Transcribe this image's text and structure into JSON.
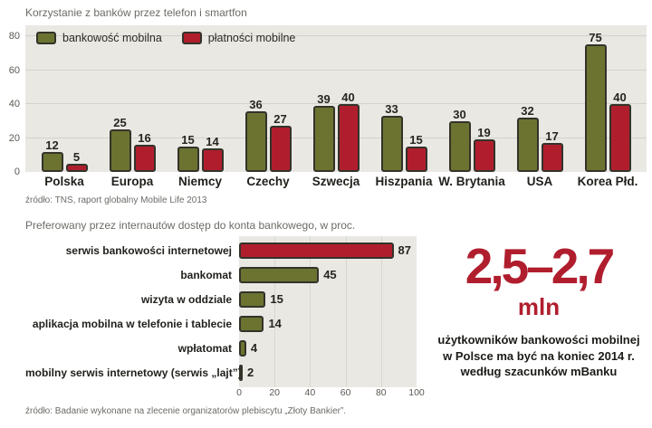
{
  "colors": {
    "olive": "#6c7331",
    "red": "#b01e2e",
    "plot_background": "#e9e8e3",
    "bar_outline": "#33332a",
    "dark_text": "#21211c",
    "muted_text": "#6b6b66"
  },
  "chart_data": [
    {
      "type": "bar",
      "orientation": "vertical",
      "title": "Korzystanie z banków przez telefon i smartfon",
      "categories": [
        "Polska",
        "Europa",
        "Niemcy",
        "Czechy",
        "Szwecja",
        "Hiszpania",
        "W. Brytania",
        "USA",
        "Korea Płd."
      ],
      "series": [
        {
          "name": "bankowość mobilna",
          "color": "#6c7331",
          "values": [
            12,
            25,
            15,
            36,
            39,
            33,
            30,
            32,
            75
          ]
        },
        {
          "name": "płatności mobilne",
          "color": "#b01e2e",
          "values": [
            5,
            16,
            14,
            27,
            40,
            15,
            19,
            17,
            40
          ]
        }
      ],
      "ylim": [
        0,
        80
      ],
      "yticks": [
        0,
        20,
        40,
        60,
        80
      ],
      "grid": "horizontal",
      "legend_position": "top-left-inside",
      "source": "źródło: TNS, raport globalny Mobile Life 2013"
    },
    {
      "type": "bar",
      "orientation": "horizontal",
      "title": "Preferowany przez internautów dostęp do konta bankowego, w proc.",
      "categories": [
        "serwis bankowości internetowej",
        "bankomat",
        "wizyta w oddziale",
        "aplikacja mobilna w telefonie i tablecie",
        "wpłatomat",
        "mobilny serwis internetowy (serwis „lajt”)"
      ],
      "values": [
        87,
        45,
        15,
        14,
        4,
        2
      ],
      "bar_colors": [
        "#b01e2e",
        "#6c7331",
        "#6c7331",
        "#6c7331",
        "#6c7331",
        "#6c7331"
      ],
      "xlim": [
        0,
        100
      ],
      "xticks": [
        0,
        20,
        40,
        60,
        80,
        100
      ],
      "source": "źródło: Badanie wykonane na zlecenie organizatorów plebiscytu „Złoty Bankier”."
    }
  ],
  "callout": {
    "number": "2,5–2,7",
    "unit": "mln",
    "description": "użytkowników bankowości mobilnej w Polsce ma być na koniec 2014 r. według szacunków mBanku"
  }
}
